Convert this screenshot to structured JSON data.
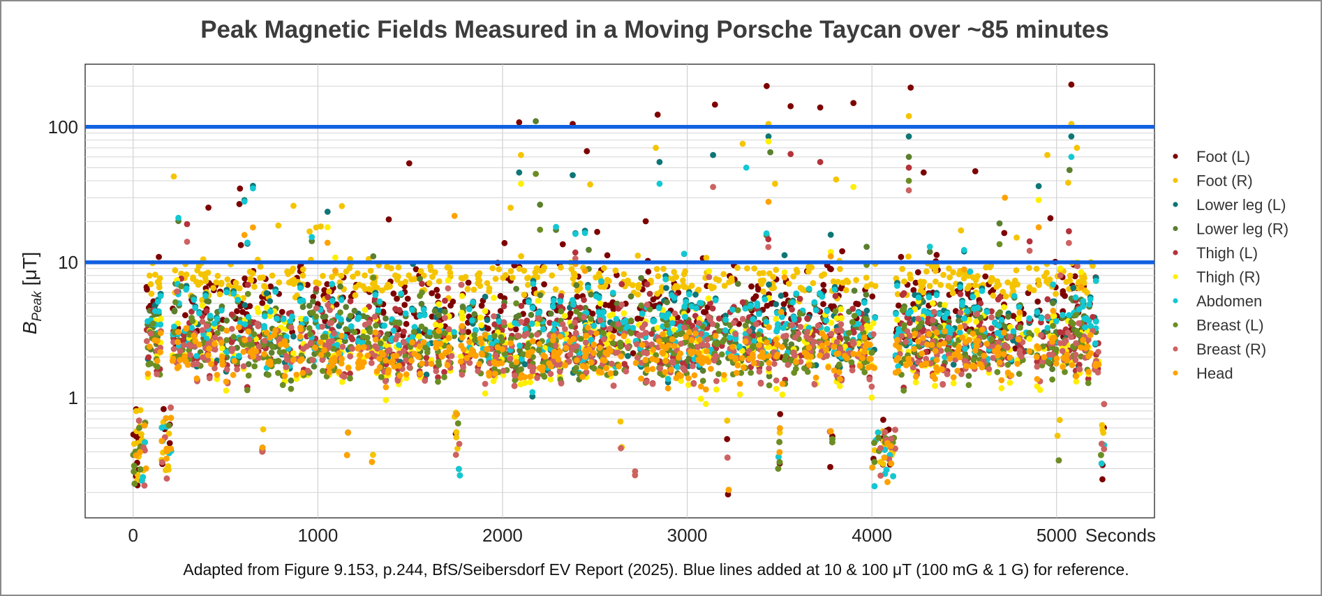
{
  "chart_data": {
    "type": "scatter",
    "title": "Peak Magnetic Fields Measured in a Moving Porsche Taycan over ~85 minutes",
    "xlabel": "Seconds",
    "ylabel": "B",
    "ylabel_sub": "Peak",
    "ylabel_unit": " [μT]",
    "x_scale": "linear",
    "y_scale": "log",
    "xlim": [
      -260,
      5530
    ],
    "ylim": [
      0.13,
      290
    ],
    "x_ticks": [
      0,
      1000,
      2000,
      3000,
      4000,
      5000
    ],
    "x_tick_labels": [
      "0",
      "1000",
      "2000",
      "3000",
      "4000",
      "5000"
    ],
    "y_ticks": [
      1,
      10,
      100
    ],
    "y_tick_labels": [
      "1",
      "10",
      "100"
    ],
    "grid": true,
    "legend_position": "right",
    "reference_lines": [
      {
        "y": 10,
        "color": "#1061e0"
      },
      {
        "y": 100,
        "color": "#1061e0"
      }
    ],
    "series": [
      {
        "name": "Foot (L)",
        "color": "#7d0000",
        "base": 4.6,
        "spread": 0.16,
        "outliers": [
          [
            2090,
            108
          ],
          [
            2380,
            105
          ],
          [
            2840,
            123
          ],
          [
            3150,
            146
          ],
          [
            3430,
            200
          ],
          [
            3560,
            142
          ],
          [
            3720,
            139
          ],
          [
            3900,
            150
          ],
          [
            4210,
            195
          ],
          [
            5080,
            205
          ],
          [
            4280,
            46
          ],
          [
            4560,
            47
          ]
        ]
      },
      {
        "name": "Foot (R)",
        "color": "#f5c400",
        "base": 7.4,
        "spread": 0.07,
        "outliers": [
          [
            220,
            43
          ],
          [
            1130,
            26
          ],
          [
            2100,
            62
          ],
          [
            3440,
            105
          ],
          [
            4200,
            120
          ],
          [
            5080,
            105
          ],
          [
            5110,
            70
          ],
          [
            4950,
            62
          ],
          [
            3300,
            75
          ],
          [
            2830,
            70
          ]
        ]
      },
      {
        "name": "Lower leg (L)",
        "color": "#0e7676",
        "base": 3.3,
        "spread": 0.16,
        "outliers": [
          [
            2090,
            46
          ],
          [
            2850,
            55
          ],
          [
            3140,
            62
          ],
          [
            3440,
            85
          ],
          [
            4200,
            85
          ],
          [
            5080,
            85
          ],
          [
            2380,
            44
          ]
        ]
      },
      {
        "name": "Lower leg (R)",
        "color": "#5b7f2e",
        "base": 3.1,
        "spread": 0.16,
        "outliers": [
          [
            2180,
            110
          ],
          [
            3450,
            65
          ],
          [
            4200,
            60
          ],
          [
            5070,
            48
          ]
        ]
      },
      {
        "name": "Thigh (L)",
        "color": "#b4323a",
        "base": 2.7,
        "spread": 0.15,
        "outliers": [
          [
            3560,
            63
          ],
          [
            4200,
            50
          ],
          [
            3720,
            55
          ]
        ]
      },
      {
        "name": "Thigh (R)",
        "color": "#ffef00",
        "base": 2.5,
        "spread": 0.17,
        "outliers": [
          [
            3440,
            78
          ],
          [
            3900,
            36
          ],
          [
            2100,
            38
          ]
        ]
      },
      {
        "name": "Abdomen",
        "color": "#12c8d2",
        "base": 3.3,
        "spread": 0.15,
        "outliers": [
          [
            3320,
            50
          ],
          [
            5080,
            60
          ],
          [
            2850,
            38
          ]
        ]
      },
      {
        "name": "Breast (L)",
        "color": "#6b8e23",
        "base": 2.3,
        "spread": 0.13,
        "outliers": [
          [
            2180,
            45
          ],
          [
            4200,
            40
          ]
        ]
      },
      {
        "name": "Breast (R)",
        "color": "#cd6262",
        "base": 2.3,
        "spread": 0.12,
        "outliers": [
          [
            3140,
            36
          ],
          [
            4200,
            34
          ]
        ]
      },
      {
        "name": "Head",
        "color": "#ffa200",
        "base": 2.1,
        "spread": 0.1,
        "outliers": [
          [
            1740,
            22
          ],
          [
            4720,
            30
          ],
          [
            3440,
            28
          ]
        ]
      }
    ],
    "low_segments": [
      [
        0,
        70
      ],
      [
        150,
        210
      ],
      [
        1740,
        1770
      ],
      [
        4020,
        4120
      ],
      [
        5240,
        5260
      ]
    ],
    "dips": [
      700,
      1160,
      1300,
      1480,
      2640,
      2720,
      3220,
      3500,
      3780,
      4010,
      4120,
      5010,
      5240
    ],
    "x_range_data": [
      0,
      5260
    ]
  },
  "caption": "Adapted from Figure 9.153, p.244, BfS/Seibersdorf EV Report (2025). Blue lines added at 10 & 100 μT (100 mG & 1 G) for reference."
}
